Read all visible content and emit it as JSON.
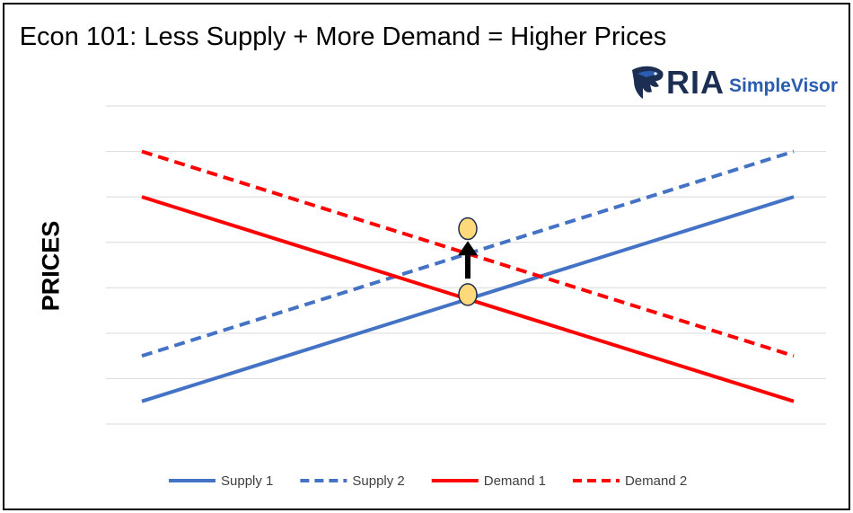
{
  "title": "Econ 101: Less Supply + More Demand = Higher Prices",
  "logo": {
    "brand": "RIA",
    "product": "SimpleVisor"
  },
  "chart_data": {
    "type": "line",
    "title": "Econ 101: Less Supply + More Demand = Higher Prices",
    "xlabel": "",
    "ylabel": "PRICES",
    "x": [
      0,
      1
    ],
    "ylim": [
      0,
      7
    ],
    "grid": true,
    "legend": "bottom",
    "series": [
      {
        "name": "Supply 1",
        "values": [
          0.5,
          5
        ],
        "color": "#4472c4",
        "dash": false
      },
      {
        "name": "Supply 2",
        "values": [
          1.5,
          6
        ],
        "color": "#4472c4",
        "dash": true
      },
      {
        "name": "Demand 1",
        "values": [
          5,
          0.5
        ],
        "color": "#ff0000",
        "dash": false
      },
      {
        "name": "Demand 2",
        "values": [
          6,
          1.5
        ],
        "color": "#ff0000",
        "dash": true
      }
    ],
    "annotations": {
      "equilibrium_points": [
        {
          "x": 0.5,
          "y": 2.85
        },
        {
          "x": 0.5,
          "y": 4.3
        }
      ],
      "arrow": {
        "x": 0.5,
        "from": 3.2,
        "to": 3.95
      },
      "point_color": "#ffd97a"
    }
  }
}
